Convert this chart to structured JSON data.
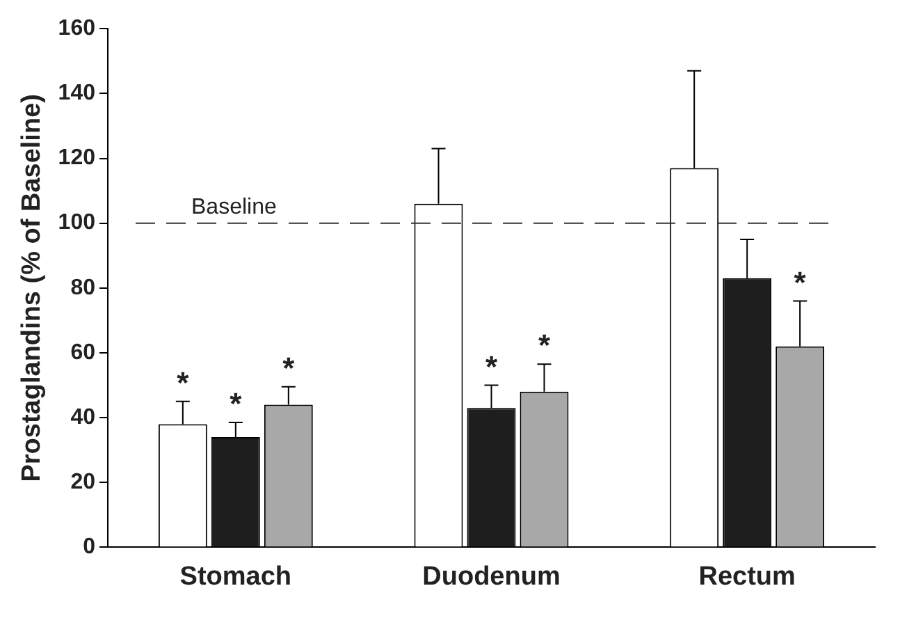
{
  "chart_data": {
    "type": "bar",
    "ylabel": "Prostaglandins (% of Baseline)",
    "categories": [
      "Stomach",
      "Duodenum",
      "Rectum"
    ],
    "series": [
      {
        "color": "#ffffff",
        "values": [
          38,
          106,
          117
        ],
        "errors": [
          [
            38,
            45
          ],
          [
            106,
            123
          ],
          [
            117,
            147
          ]
        ],
        "value_labels": [
          "*",
          null,
          null
        ]
      },
      {
        "color": "#1e1e1e",
        "values": [
          34,
          43,
          83
        ],
        "errors": [
          [
            34,
            38.5
          ],
          [
            43,
            50
          ],
          [
            83,
            95
          ]
        ],
        "value_labels": [
          "*",
          "*",
          null
        ]
      },
      {
        "color": "#a8a8a8",
        "values": [
          44,
          48,
          62
        ],
        "errors": [
          [
            44,
            49.5
          ],
          [
            48,
            56.5
          ],
          [
            62,
            76
          ]
        ],
        "value_labels": [
          "*",
          "*",
          "*"
        ]
      }
    ],
    "ylim": [
      0,
      160
    ],
    "yticks": [
      0,
      20,
      40,
      60,
      80,
      100,
      120,
      140,
      160
    ],
    "grid": false,
    "legend": false,
    "ref_lines": [
      {
        "axis": "y",
        "value": 100,
        "label": "Baseline",
        "line_style": "dashed"
      }
    ]
  }
}
